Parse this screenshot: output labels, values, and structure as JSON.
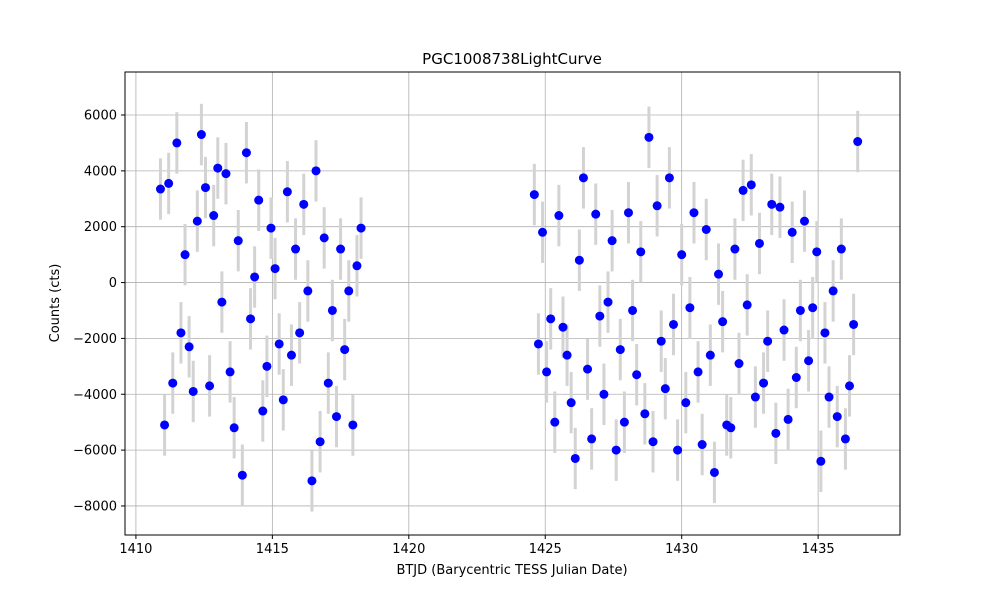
{
  "chart_data": {
    "type": "errorbar",
    "title": "PGC1008738LightCurve",
    "xlabel": "BTJD (Barycentric TESS Julian Date)",
    "ylabel": "Counts (cts)",
    "x": [
      1410.9,
      1411.05,
      1411.2,
      1411.35,
      1411.5,
      1411.65,
      1411.8,
      1411.95,
      1412.1,
      1412.25,
      1412.4,
      1412.55,
      1412.7,
      1412.85,
      1413.0,
      1413.15,
      1413.3,
      1413.45,
      1413.6,
      1413.75,
      1413.9,
      1414.05,
      1414.2,
      1414.35,
      1414.5,
      1414.65,
      1414.8,
      1414.95,
      1415.1,
      1415.25,
      1415.4,
      1415.55,
      1415.7,
      1415.85,
      1416.0,
      1416.15,
      1416.3,
      1416.45,
      1416.6,
      1416.75,
      1416.9,
      1417.05,
      1417.2,
      1417.35,
      1417.5,
      1417.65,
      1417.8,
      1417.95,
      1418.1,
      1418.25,
      1424.6,
      1424.75,
      1424.9,
      1425.05,
      1425.2,
      1425.35,
      1425.5,
      1425.65,
      1425.8,
      1425.95,
      1426.1,
      1426.25,
      1426.4,
      1426.55,
      1426.7,
      1426.85,
      1427.0,
      1427.15,
      1427.3,
      1427.45,
      1427.6,
      1427.75,
      1427.9,
      1428.05,
      1428.2,
      1428.35,
      1428.5,
      1428.65,
      1428.8,
      1428.95,
      1429.1,
      1429.25,
      1429.4,
      1429.55,
      1429.7,
      1429.85,
      1430.0,
      1430.15,
      1430.3,
      1430.45,
      1430.6,
      1430.75,
      1430.9,
      1431.05,
      1431.2,
      1431.35,
      1431.5,
      1431.65,
      1431.8,
      1431.95,
      1432.1,
      1432.25,
      1432.4,
      1432.55,
      1432.7,
      1432.85,
      1433.0,
      1433.15,
      1433.3,
      1433.45,
      1433.6,
      1433.75,
      1433.9,
      1434.05,
      1434.2,
      1434.35,
      1434.5,
      1434.65,
      1434.8,
      1434.95,
      1435.1,
      1435.25,
      1435.4,
      1435.55,
      1435.7,
      1435.85,
      1436.0,
      1436.15,
      1436.3,
      1436.45
    ],
    "values": [
      3350,
      -5100,
      3550,
      -3600,
      5000,
      -1800,
      1000,
      -2300,
      -3900,
      2200,
      5300,
      3400,
      -3700,
      2400,
      4100,
      -700,
      3900,
      -3200,
      -5200,
      1500,
      -6900,
      4650,
      -1300,
      200,
      2950,
      -4600,
      -3000,
      1950,
      500,
      -2200,
      -4200,
      3250,
      -2600,
      1200,
      -1800,
      2800,
      -300,
      -7100,
      4000,
      -5700,
      1600,
      -3600,
      -1000,
      -4800,
      1200,
      -2400,
      -300,
      -5100,
      600,
      1950,
      3150,
      -2200,
      1800,
      -3200,
      -1300,
      -5000,
      2400,
      -1600,
      -2600,
      -4300,
      -6300,
      800,
      3750,
      -3100,
      -5600,
      2450,
      -1200,
      -4000,
      -700,
      1500,
      -6000,
      -2400,
      -5000,
      2500,
      -1000,
      -3300,
      1100,
      -4700,
      5200,
      -5700,
      2750,
      -2100,
      -3800,
      3750,
      -1500,
      -6000,
      1000,
      -4300,
      -900,
      2500,
      -3200,
      -5800,
      1900,
      -2600,
      -6800,
      300,
      -1400,
      -5100,
      -5200,
      1200,
      -2900,
      3300,
      -800,
      3500,
      -4100,
      1400,
      -3600,
      -2100,
      2800,
      -5400,
      2700,
      -1700,
      -4900,
      1800,
      -3400,
      -1000,
      2200,
      -2800,
      -900,
      1100,
      -6400,
      -1800,
      -4100,
      -300,
      -4800,
      1200,
      -5600,
      -3700,
      -1500,
      5050
    ],
    "yerr": 1100,
    "color": "#0000ff",
    "errorbar_color": "#d3d3d3",
    "xlim": [
      1409.6,
      1438.0
    ],
    "ylim": [
      -9040,
      7540
    ],
    "xticks": [
      1410,
      1415,
      1420,
      1425,
      1430,
      1435
    ],
    "yticks": [
      {
        "value": -8000,
        "label": "−8000"
      },
      {
        "value": -6000,
        "label": "−6000"
      },
      {
        "value": -4000,
        "label": "−4000"
      },
      {
        "value": -2000,
        "label": "−2000"
      },
      0,
      2000,
      4000,
      6000
    ],
    "grid": true
  }
}
